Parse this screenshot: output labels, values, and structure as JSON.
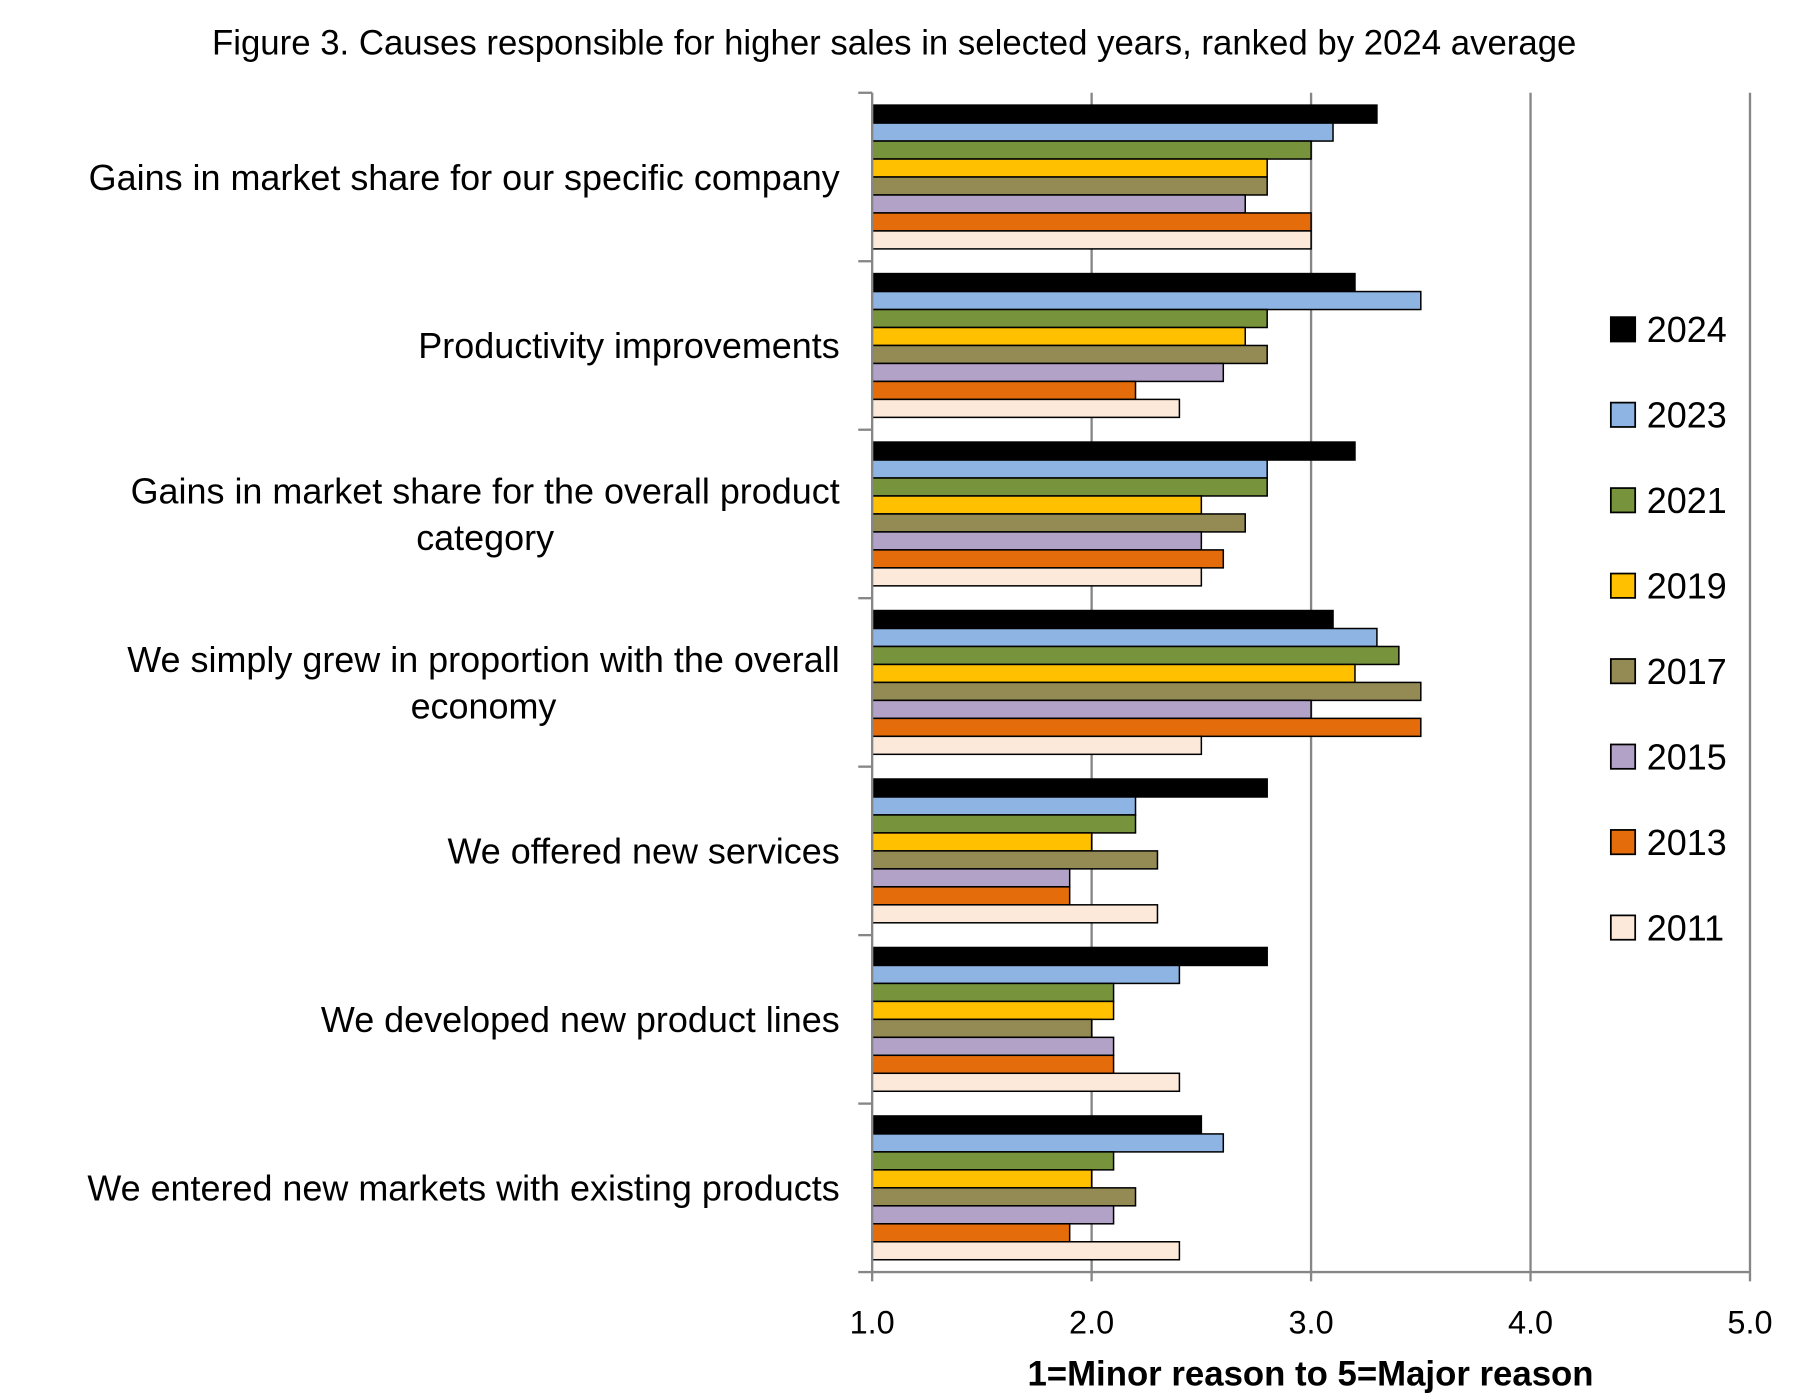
{
  "chart_data": {
    "type": "bar",
    "orientation": "horizontal",
    "title": "Figure 3. Causes responsible for higher sales in selected years, ranked by 2024 average",
    "xlabel": "1=Minor reason to 5=Major reason",
    "xlim": [
      1.0,
      5.0
    ],
    "x_ticks": [
      "1.0",
      "2.0",
      "3.0",
      "4.0",
      "5.0"
    ],
    "grid": true,
    "legend_position": "right",
    "categories": [
      "Gains in market share for our specific company",
      "Productivity improvements",
      "Gains in market share for the overall product category",
      "We simply grew in proportion with the overall economy",
      "We offered new services",
      "We developed new product lines",
      "We entered new markets with existing products"
    ],
    "series": [
      {
        "name": "2024",
        "color": "#000000",
        "values": [
          3.3,
          3.2,
          3.2,
          3.1,
          2.8,
          2.8,
          2.5
        ]
      },
      {
        "name": "2023",
        "color": "#8DB4E2",
        "values": [
          3.1,
          3.5,
          2.8,
          3.3,
          2.2,
          2.4,
          2.6
        ]
      },
      {
        "name": "2021",
        "color": "#77933C",
        "values": [
          3.0,
          2.8,
          2.8,
          3.4,
          2.2,
          2.1,
          2.1
        ]
      },
      {
        "name": "2019",
        "color": "#FFC000",
        "values": [
          2.8,
          2.7,
          2.5,
          3.2,
          2.0,
          2.1,
          2.0
        ]
      },
      {
        "name": "2017",
        "color": "#948A54",
        "values": [
          2.8,
          2.8,
          2.7,
          3.5,
          2.3,
          2.0,
          2.2
        ]
      },
      {
        "name": "2015",
        "color": "#B3A2C7",
        "values": [
          2.7,
          2.6,
          2.5,
          3.0,
          1.9,
          2.1,
          2.1
        ]
      },
      {
        "name": "2013",
        "color": "#E46C0A",
        "values": [
          3.0,
          2.2,
          2.6,
          3.5,
          1.9,
          2.1,
          1.9
        ]
      },
      {
        "name": "2011",
        "color": "#FDE9D9",
        "values": [
          3.0,
          2.4,
          2.5,
          2.5,
          2.3,
          2.4,
          2.4
        ]
      }
    ]
  }
}
